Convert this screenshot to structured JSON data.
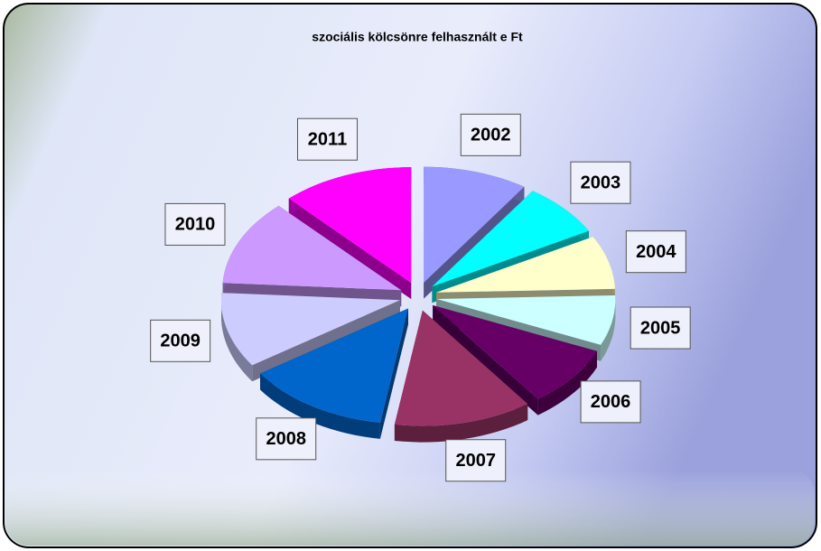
{
  "chart_data": {
    "type": "pie",
    "title": "szociális kölcsönre felhasznált  e Ft",
    "categories": [
      "2002",
      "2003",
      "2004",
      "2005",
      "2006",
      "2007",
      "2008",
      "2009",
      "2010",
      "2011"
    ],
    "values": [
      9.5,
      7.5,
      7.5,
      7,
      8.5,
      12.5,
      13,
      10.5,
      12,
      12
    ],
    "colors": [
      "#9999ff",
      "#00ffff",
      "#ffffcc",
      "#ccffff",
      "#660066",
      "#993366",
      "#0066cc",
      "#ccccff",
      "#cc99ff",
      "#ff00ff"
    ]
  }
}
